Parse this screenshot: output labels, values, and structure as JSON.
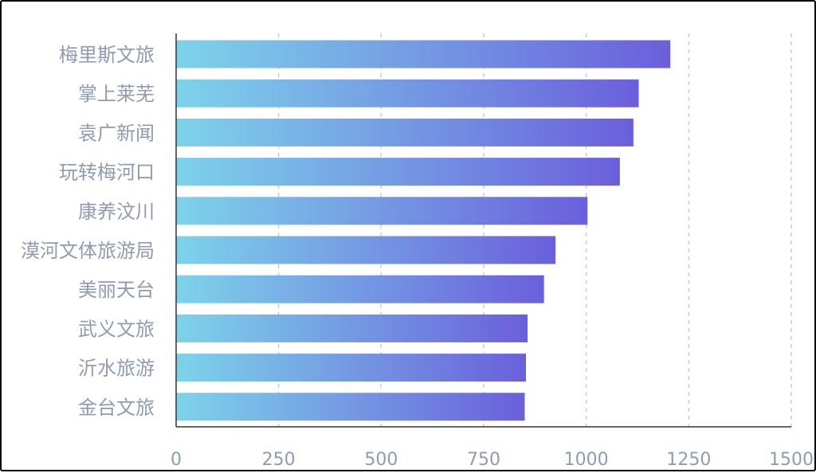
{
  "chart_data": {
    "type": "bar",
    "orientation": "horizontal",
    "categories": [
      "梅里斯文旅",
      "掌上莱芜",
      "袁广新闻",
      "玩转梅河口",
      "康养汶川",
      "漠河文体旅游局",
      "美丽天台",
      "武义文旅",
      "沂水旅游",
      "金台文旅"
    ],
    "values": [
      1205,
      1128,
      1115,
      1082,
      1003,
      925,
      897,
      857,
      853,
      850
    ],
    "xlim": [
      0,
      1500
    ],
    "xticks": [
      "0",
      "250",
      "500",
      "750",
      "1000",
      "1250",
      "1500"
    ],
    "grid": "vertical-dashed",
    "colors": {
      "bar_gradient_start": "#7dd3ea",
      "bar_gradient_end": "#6b5fdc",
      "axis": "#333333",
      "grid": "#cccccc",
      "label": "#8f9bb3"
    }
  }
}
